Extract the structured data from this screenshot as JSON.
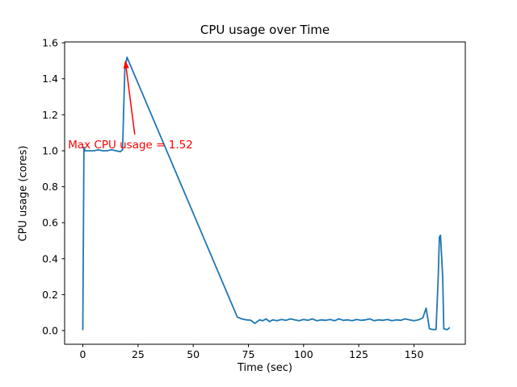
{
  "figure": {
    "background": "#ffffff",
    "spine_color": "#000000",
    "tick_color": "#000000",
    "text_color": "#000000"
  },
  "chart_data": {
    "type": "line",
    "title": "CPU usage over Time",
    "xlabel": "Time (sec)",
    "ylabel": "CPU usage (cores)",
    "xlim": [
      -8.25,
      173.25
    ],
    "ylim": [
      -0.076,
      1.605
    ],
    "xticks": [
      0,
      25,
      50,
      75,
      100,
      125,
      150
    ],
    "xtick_labels": [
      "0",
      "25",
      "50",
      "75",
      "100",
      "125",
      "150"
    ],
    "yticks": [
      0.0,
      0.2,
      0.4,
      0.6,
      0.8,
      1.0,
      1.2,
      1.4,
      1.6
    ],
    "ytick_labels": [
      "0.0",
      "0.2",
      "0.4",
      "0.6",
      "0.8",
      "1.0",
      "1.2",
      "1.4",
      "1.6"
    ],
    "grid": false,
    "legend": null,
    "series": [
      {
        "name": "CPU usage",
        "color": "#1f77b4",
        "points": [
          [
            0,
            0.005
          ],
          [
            0.5,
            1.02
          ],
          [
            1,
            1.0
          ],
          [
            3,
            1.0
          ],
          [
            5,
            1.0
          ],
          [
            7,
            1.005
          ],
          [
            9,
            1.0
          ],
          [
            11,
            1.0
          ],
          [
            13,
            1.005
          ],
          [
            15,
            1.0
          ],
          [
            17,
            0.995
          ],
          [
            18,
            1.005
          ],
          [
            19,
            1.45
          ],
          [
            20,
            1.52
          ],
          [
            70,
            0.075
          ],
          [
            72,
            0.065
          ],
          [
            74,
            0.06
          ],
          [
            76,
            0.058
          ],
          [
            78,
            0.04
          ],
          [
            80,
            0.06
          ],
          [
            81.5,
            0.055
          ],
          [
            83,
            0.065
          ],
          [
            84.5,
            0.05
          ],
          [
            86,
            0.06
          ],
          [
            88,
            0.055
          ],
          [
            90,
            0.062
          ],
          [
            92,
            0.057
          ],
          [
            94,
            0.065
          ],
          [
            96,
            0.06
          ],
          [
            98,
            0.055
          ],
          [
            100,
            0.062
          ],
          [
            102,
            0.057
          ],
          [
            104,
            0.065
          ],
          [
            106,
            0.055
          ],
          [
            108,
            0.06
          ],
          [
            110,
            0.057
          ],
          [
            112,
            0.062
          ],
          [
            114,
            0.055
          ],
          [
            116,
            0.065
          ],
          [
            118,
            0.057
          ],
          [
            120,
            0.06
          ],
          [
            122,
            0.055
          ],
          [
            124,
            0.062
          ],
          [
            126,
            0.057
          ],
          [
            128,
            0.06
          ],
          [
            130,
            0.065
          ],
          [
            132,
            0.055
          ],
          [
            134,
            0.06
          ],
          [
            136,
            0.057
          ],
          [
            138,
            0.062
          ],
          [
            140,
            0.055
          ],
          [
            142,
            0.06
          ],
          [
            144,
            0.057
          ],
          [
            146,
            0.065
          ],
          [
            148,
            0.06
          ],
          [
            150,
            0.055
          ],
          [
            152,
            0.06
          ],
          [
            154,
            0.07
          ],
          [
            155.5,
            0.125
          ],
          [
            157,
            0.01
          ],
          [
            158.5,
            0.006
          ],
          [
            160,
            0.006
          ],
          [
            161,
            0.3
          ],
          [
            161.5,
            0.52
          ],
          [
            162,
            0.53
          ],
          [
            163,
            0.3
          ],
          [
            163.5,
            0.01
          ],
          [
            165,
            0.005
          ],
          [
            166,
            0.015
          ]
        ]
      }
    ],
    "annotation": {
      "text": "Max CPU usage = 1.52",
      "color": "#ff0000",
      "text_x": -6.7,
      "text_y": 1.013,
      "arrow_tail": [
        23.5,
        1.09
      ],
      "arrow_tip": [
        19.2,
        1.503
      ]
    },
    "max_value": 1.52
  }
}
